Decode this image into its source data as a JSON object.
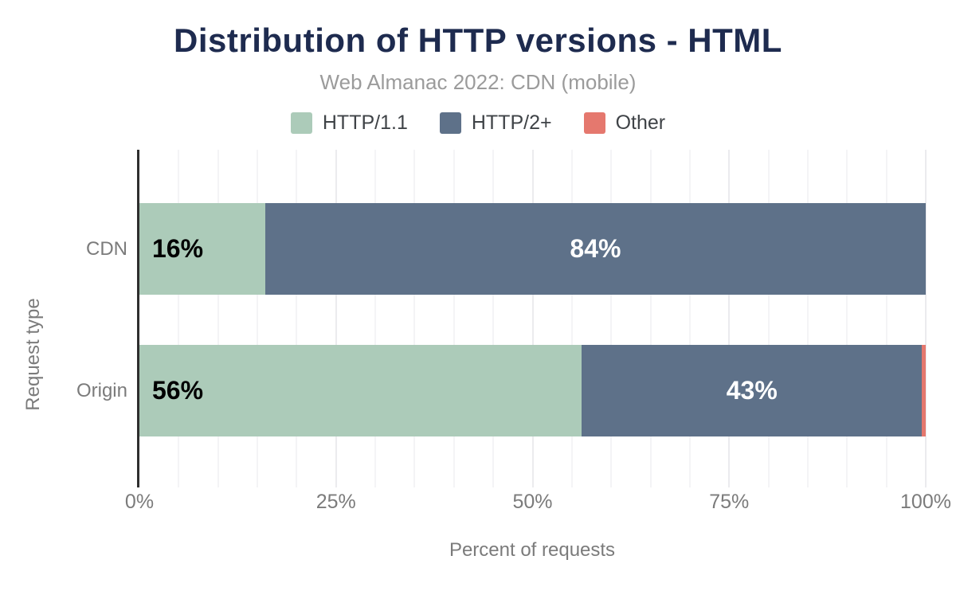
{
  "colors": {
    "background": "#ffffff",
    "title": "#1e2b4f",
    "subtitle": "#9b9b9b",
    "axis_text": "#7b7b7b",
    "legend_text": "#3f4347",
    "axis_line": "#2e2e2e",
    "grid_minor": "#f4f4f6",
    "grid_major": "#ebebee",
    "series_http11": "#accbb9",
    "series_http2plus": "#5e7189",
    "series_other": "#e5786e"
  },
  "chart_data": {
    "type": "bar",
    "orientation": "horizontal",
    "stacked": true,
    "title": "Distribution of HTTP versions - HTML",
    "subtitle": "Web Almanac 2022: CDN (mobile)",
    "categories": [
      "CDN",
      "Origin"
    ],
    "series": [
      {
        "name": "HTTP/1.1",
        "color": "#accbb9",
        "values": [
          16,
          56
        ],
        "labels": [
          "16%",
          "56%"
        ],
        "label_color": "#000000",
        "label_align": "start"
      },
      {
        "name": "HTTP/2+",
        "color": "#5e7189",
        "values": [
          84,
          43
        ],
        "labels": [
          "84%",
          "43%"
        ],
        "label_color": "#ffffff",
        "label_align": "center"
      },
      {
        "name": "Other",
        "color": "#e5786e",
        "values": [
          0,
          0.5
        ],
        "labels": [
          "",
          ""
        ],
        "label_color": "#ffffff",
        "label_align": "center"
      }
    ],
    "xlabel": "Percent of requests",
    "ylabel": "Request type",
    "x_ticks": [
      "0%",
      "25%",
      "50%",
      "75%",
      "100%"
    ],
    "x_tick_values": [
      0,
      25,
      50,
      75,
      100
    ],
    "xlim": [
      0,
      100
    ],
    "minor_grid_step": 5,
    "major_grid_step": 25,
    "grid": true,
    "legend_position": "top"
  }
}
